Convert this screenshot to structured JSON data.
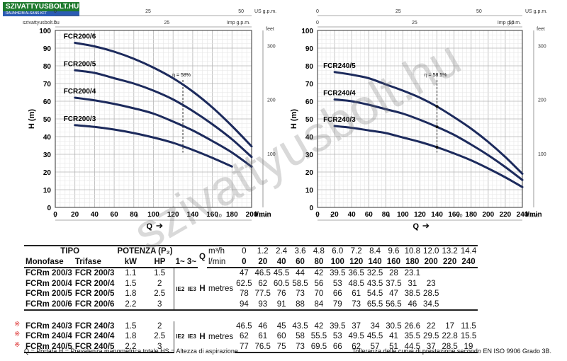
{
  "logo": {
    "brand": "SZIVATTYUSBOLT.HU",
    "tagline": "RAUNHEIM ALSANS KFT"
  },
  "site_url": "szivattyusbolt.hu",
  "watermark": "szivattyusbolt.hu",
  "chart_data": [
    {
      "type": "line",
      "xlabel": "Q",
      "x_unit": "l/min",
      "ylabel": "H (m)",
      "xlim": [
        0,
        200
      ],
      "ylim": [
        0,
        100
      ],
      "x_ticks": [
        0,
        20,
        40,
        60,
        80,
        100,
        120,
        140,
        160,
        180,
        200
      ],
      "y_ticks": [
        0,
        10,
        20,
        30,
        40,
        50,
        60,
        70,
        80,
        90,
        100
      ],
      "top_axis": {
        "unit": "US g.p.m.",
        "ticks": [
          "0",
          "25",
          "50"
        ]
      },
      "top_axis2": {
        "unit": "Imp g.p.m.",
        "ticks": [
          "0",
          "25"
        ]
      },
      "right_axis": {
        "unit": "feet",
        "ticks": [
          "100",
          "200",
          "300"
        ]
      },
      "bottom_axis2": {
        "unit": "m³/h",
        "ticks": [
          "0",
          "5",
          "10"
        ]
      },
      "efficiency_label": "η = 58%",
      "efficiency_x": 130,
      "grid": true,
      "series": [
        {
          "name": "FCR200/6",
          "x": [
            20,
            40,
            60,
            80,
            100,
            120,
            140,
            160,
            180,
            200
          ],
          "y": [
            93,
            91,
            88,
            84,
            79,
            73,
            65.5,
            56.5,
            46,
            34.5
          ]
        },
        {
          "name": "FCR200/5",
          "x": [
            20,
            40,
            60,
            80,
            100,
            120,
            140,
            160,
            180,
            200
          ],
          "y": [
            77.5,
            76,
            73,
            70,
            66,
            61,
            54.5,
            47,
            38.5,
            28.5
          ]
        },
        {
          "name": "FCR200/4",
          "x": [
            20,
            40,
            60,
            80,
            100,
            120,
            140,
            160,
            180,
            200
          ],
          "y": [
            62,
            60.5,
            58.5,
            56,
            53,
            48.5,
            43.5,
            37.5,
            31,
            23
          ]
        },
        {
          "name": "FCR200/3",
          "x": [
            20,
            40,
            60,
            80,
            100,
            120,
            140,
            160,
            180
          ],
          "y": [
            46.5,
            45.5,
            44,
            42,
            39.5,
            36.5,
            32.5,
            28,
            23.1
          ]
        }
      ]
    },
    {
      "type": "line",
      "xlabel": "Q",
      "x_unit": "l/min",
      "ylabel": "H (m)",
      "xlim": [
        0,
        240
      ],
      "ylim": [
        0,
        100
      ],
      "x_ticks": [
        0,
        20,
        40,
        60,
        80,
        100,
        120,
        140,
        160,
        180,
        200,
        220,
        240
      ],
      "y_ticks": [
        0,
        10,
        20,
        30,
        40,
        50,
        60,
        70,
        80,
        90,
        100
      ],
      "top_axis": {
        "unit": "US g.p.m.",
        "ticks": [
          "0",
          "25",
          "50"
        ]
      },
      "top_axis2": {
        "unit": "Imp g.p.m.",
        "ticks": [
          "0",
          "25",
          "50"
        ]
      },
      "right_axis": {
        "unit": "feet",
        "ticks": [
          "100",
          "200",
          "300"
        ]
      },
      "bottom_axis2": {
        "unit": "m³/h",
        "ticks": [
          "0",
          "5",
          "10",
          "1:"
        ]
      },
      "efficiency_label": "η = 58.5%",
      "efficiency_x": 140,
      "grid": true,
      "series": [
        {
          "name": "FCR240/5",
          "x": [
            20,
            40,
            60,
            80,
            100,
            120,
            140,
            160,
            180,
            200,
            220,
            240
          ],
          "y": [
            76.5,
            75,
            73,
            69.5,
            66,
            62,
            57,
            51,
            44.5,
            37,
            28.5,
            19
          ]
        },
        {
          "name": "FCR240/4",
          "x": [
            20,
            40,
            60,
            80,
            100,
            120,
            140,
            160,
            180,
            200,
            220,
            240
          ],
          "y": [
            61,
            60,
            58,
            55.5,
            53,
            49.5,
            45.5,
            41,
            35.5,
            29.5,
            22.8,
            15.5
          ]
        },
        {
          "name": "FCR240/3",
          "x": [
            20,
            40,
            60,
            80,
            100,
            120,
            140,
            160,
            180,
            200,
            220,
            240
          ],
          "y": [
            46,
            45,
            43.5,
            42,
            39.5,
            37,
            34,
            30.5,
            26.6,
            22,
            17,
            11.5
          ]
        }
      ]
    }
  ],
  "table": {
    "tipo": "TIPO",
    "potenza": "POTENZA (P₂)",
    "q_label": "Q",
    "m3h": "m³/h",
    "lmin": "l/min",
    "monofase": "Monofase",
    "trifase": "Trifase",
    "kw": "kW",
    "hp": "HP",
    "phase": "1~ 3~",
    "h_label": "H",
    "metres": "metres",
    "ie2": "IE2",
    "ie3": "IE3",
    "m3h_values": [
      "0",
      "1.2",
      "2.4",
      "3.6",
      "4.8",
      "6.0",
      "7.2",
      "8.4",
      "9.6",
      "10.8",
      "12.0",
      "13.2",
      "14.4"
    ],
    "lmin_values": [
      "0",
      "20",
      "40",
      "60",
      "80",
      "100",
      "120",
      "140",
      "160",
      "180",
      "200",
      "220",
      "240"
    ],
    "group1": [
      {
        "mono": "FCRm 200/3",
        "tri": "FCR 200/3",
        "kw": "1.1",
        "hp": "1.5",
        "h": [
          "47",
          "46.5",
          "45.5",
          "44",
          "42",
          "39.5",
          "36.5",
          "32.5",
          "28",
          "23.1",
          "",
          "",
          ""
        ]
      },
      {
        "mono": "FCRm 200/4",
        "tri": "FCR 200/4",
        "kw": "1.5",
        "hp": "2",
        "h": [
          "62.5",
          "62",
          "60.5",
          "58.5",
          "56",
          "53",
          "48.5",
          "43.5",
          "37.5",
          "31",
          "23",
          "",
          ""
        ]
      },
      {
        "mono": "FCRm 200/5",
        "tri": "FCR 200/5",
        "kw": "1.8",
        "hp": "2.5",
        "h": [
          "78",
          "77.5",
          "76",
          "73",
          "70",
          "66",
          "61",
          "54.5",
          "47",
          "38.5",
          "28.5",
          "",
          ""
        ]
      },
      {
        "mono": "FCRm 200/6",
        "tri": "FCR 200/6",
        "kw": "2.2",
        "hp": "3",
        "h": [
          "94",
          "93",
          "91",
          "88",
          "84",
          "79",
          "73",
          "65.5",
          "56.5",
          "46",
          "34.5",
          "",
          ""
        ]
      }
    ],
    "group2": [
      {
        "mono": "FCRm 240/3",
        "tri": "FCR 240/3",
        "kw": "1.5",
        "hp": "2",
        "h": [
          "46.5",
          "46",
          "45",
          "43.5",
          "42",
          "39.5",
          "37",
          "34",
          "30.5",
          "26.6",
          "22",
          "17",
          "11.5"
        ]
      },
      {
        "mono": "FCRm 240/4",
        "tri": "FCR 240/4",
        "kw": "1.8",
        "hp": "2.5",
        "h": [
          "62",
          "61",
          "60",
          "58",
          "55.5",
          "53",
          "49.5",
          "45.5",
          "41",
          "35.5",
          "29.5",
          "22.8",
          "15.5"
        ]
      },
      {
        "mono": "FCRm 240/5",
        "tri": "FCR 240/5",
        "kw": "2.2",
        "hp": "3",
        "h": [
          "77",
          "76.5",
          "75",
          "73",
          "69.5",
          "66",
          "62",
          "57",
          "51",
          "44.5",
          "37",
          "28.5",
          "19"
        ]
      }
    ],
    "mark": "※"
  },
  "legend": "Q = Portata  H = Prevalenza manometrica totale  HS = Altezza di aspirazione",
  "tolerance": "Tolleranza delle curve di prestazione secondo EN ISO 9906 Grado 3B."
}
